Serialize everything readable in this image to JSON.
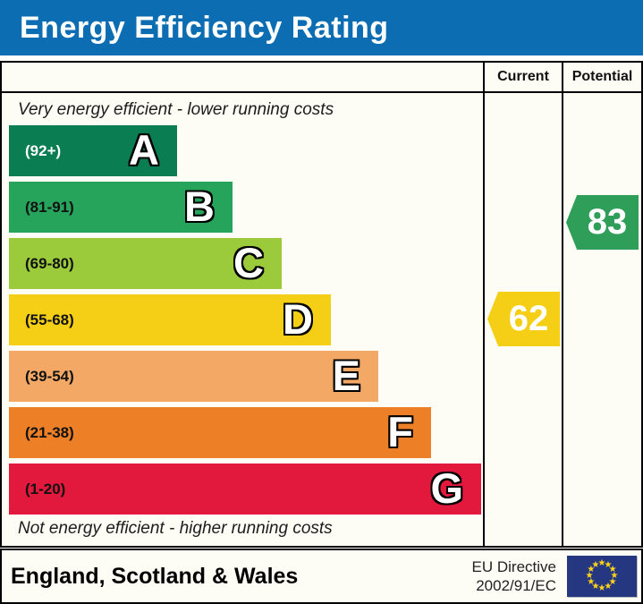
{
  "title": "Energy Efficiency Rating",
  "columns": {
    "current": "Current",
    "potential": "Potential"
  },
  "notes": {
    "top": "Very energy efficient - lower running costs",
    "bottom": "Not energy efficient - higher running costs"
  },
  "chart_data": {
    "type": "bar",
    "title": "Energy Efficiency Rating",
    "bands": [
      {
        "letter": "A",
        "range": "(92+)",
        "min": 92,
        "max": 100,
        "color": "#0a7d52"
      },
      {
        "letter": "B",
        "range": "(81-91)",
        "min": 81,
        "max": 91,
        "color": "#27a45c"
      },
      {
        "letter": "C",
        "range": "(69-80)",
        "min": 69,
        "max": 80,
        "color": "#9bca3b"
      },
      {
        "letter": "D",
        "range": "(55-68)",
        "min": 55,
        "max": 68,
        "color": "#f5cf16"
      },
      {
        "letter": "E",
        "range": "(39-54)",
        "min": 39,
        "max": 54,
        "color": "#f3a865"
      },
      {
        "letter": "F",
        "range": "(21-38)",
        "min": 21,
        "max": 38,
        "color": "#ed8026"
      },
      {
        "letter": "G",
        "range": "(1-20)",
        "min": 1,
        "max": 20,
        "color": "#e2183d"
      }
    ],
    "current": {
      "value": 62,
      "band": "D",
      "color": "#f5cf16"
    },
    "potential": {
      "value": 83,
      "band": "B",
      "color": "#2e9e58"
    }
  },
  "footer": {
    "region": "England, Scotland & Wales",
    "directive_line1": "EU Directive",
    "directive_line2": "2002/91/EC",
    "eu_flag": {
      "blue": "#263781",
      "star_color": "#ffd617",
      "star_count": 12
    }
  },
  "accent_colors": {
    "title_bar_blue": "#0c6db3"
  }
}
